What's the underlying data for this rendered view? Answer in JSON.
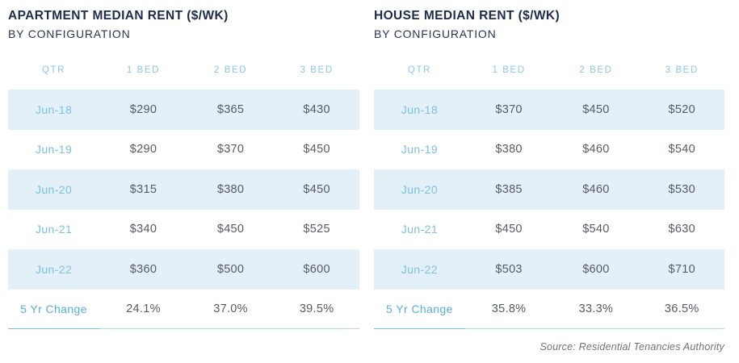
{
  "page": {
    "source_note": "Source: Residential Tenancies Authority"
  },
  "colors": {
    "title_navy": "#1d2b4e",
    "header_blue": "#8cc7e6",
    "row_label_blue": "#7cc0e2",
    "summary_label_blue": "#57aed9",
    "value_gray": "#555a64",
    "shaded_row_bg": "#e4f0f8",
    "underline_light": "#b3d9ec",
    "underline_dark": "#79c0dd",
    "source_gray": "#6d727f"
  },
  "chart_data": [
    {
      "type": "table",
      "title": "APARTMENT MEDIAN RENT ($/WK)",
      "subtitle": "BY CONFIGURATION",
      "columns": [
        "QTR",
        "1 BED",
        "2 BED",
        "3 BED"
      ],
      "rows": [
        {
          "label": "Jun-18",
          "values": [
            "$290",
            "$365",
            "$430"
          ],
          "shaded": true
        },
        {
          "label": "Jun-19",
          "values": [
            "$290",
            "$370",
            "$450"
          ],
          "shaded": false
        },
        {
          "label": "Jun-20",
          "values": [
            "$315",
            "$380",
            "$450"
          ],
          "shaded": true
        },
        {
          "label": "Jun-21",
          "values": [
            "$340",
            "$450",
            "$525"
          ],
          "shaded": false
        },
        {
          "label": "Jun-22",
          "values": [
            "$360",
            "$500",
            "$600"
          ],
          "shaded": true
        }
      ],
      "summary_row": {
        "label": "5 Yr Change",
        "values": [
          "24.1%",
          "37.0%",
          "39.5%"
        ]
      }
    },
    {
      "type": "table",
      "title": "HOUSE MEDIAN RENT ($/WK)",
      "subtitle": "BY CONFIGURATION",
      "columns": [
        "QTR",
        "1 BED",
        "2 BED",
        "3 BED"
      ],
      "rows": [
        {
          "label": "Jun-18",
          "values": [
            "$370",
            "$450",
            "$520"
          ],
          "shaded": true
        },
        {
          "label": "Jun-19",
          "values": [
            "$380",
            "$460",
            "$540"
          ],
          "shaded": false
        },
        {
          "label": "Jun-20",
          "values": [
            "$385",
            "$460",
            "$530"
          ],
          "shaded": true
        },
        {
          "label": "Jun-21",
          "values": [
            "$450",
            "$540",
            "$630"
          ],
          "shaded": false
        },
        {
          "label": "Jun-22",
          "values": [
            "$503",
            "$600",
            "$710"
          ],
          "shaded": true
        }
      ],
      "summary_row": {
        "label": "5 Yr Change",
        "values": [
          "35.8%",
          "33.3%",
          "36.5%"
        ]
      }
    }
  ]
}
